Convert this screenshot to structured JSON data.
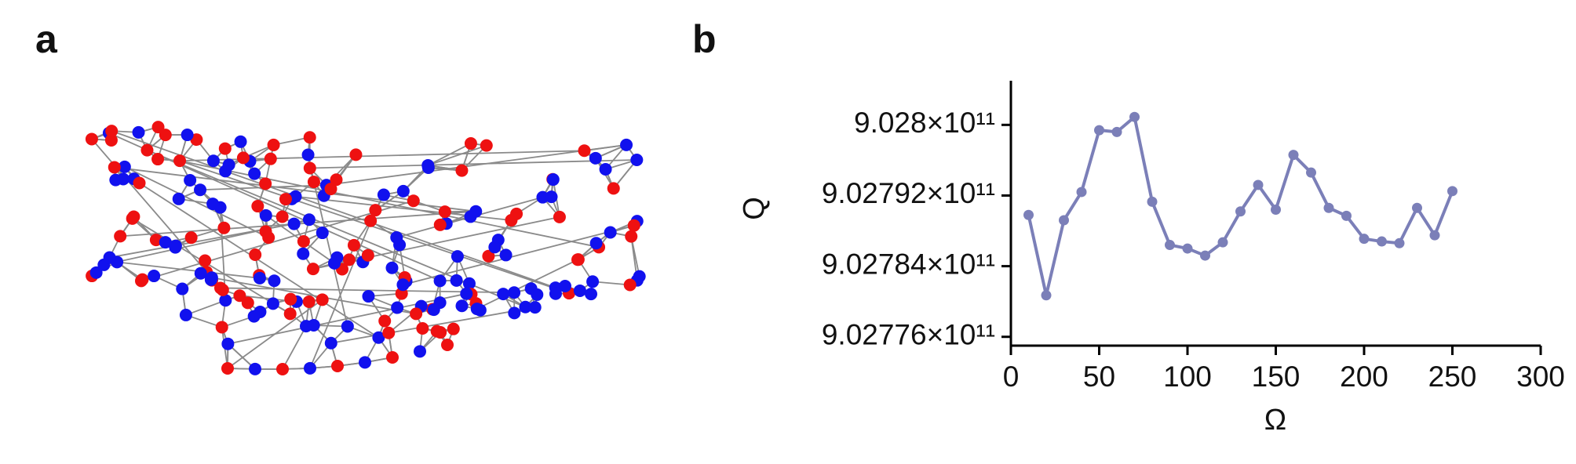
{
  "panels": {
    "a": "a",
    "b": "b"
  },
  "chart_data": {
    "type": "line",
    "x_label": "Ω",
    "y_label": "Q",
    "x": [
      10,
      20,
      30,
      40,
      50,
      60,
      70,
      80,
      90,
      100,
      110,
      120,
      130,
      140,
      150,
      160,
      170,
      180,
      190,
      200,
      210,
      220,
      230,
      240,
      250
    ],
    "series": [
      {
        "name": "Q",
        "color": "#7b7fb8",
        "values": [
          902789800000,
          902780700000,
          902789200000,
          902792400000,
          902799400000,
          902799200000,
          902800900000,
          902791300000,
          902786400000,
          902786000000,
          902785200000,
          902786700000,
          902790200000,
          902793200000,
          902790400000,
          902796600000,
          902794600000,
          902790600000,
          902789700000,
          902787100000,
          902786800000,
          902786600000,
          902790600000,
          902787500000,
          902792500000
        ]
      }
    ],
    "xlim": [
      0,
      300
    ],
    "xticks": [
      0,
      50,
      100,
      150,
      200,
      250,
      300
    ],
    "ylim": [
      902775000000,
      902805000000
    ],
    "yticks": [
      {
        "value": 902776000000,
        "label": "9.02776×10¹¹"
      },
      {
        "value": 902784000000,
        "label": "9.02784×10¹¹"
      },
      {
        "value": 902792000000,
        "label": "9.02792×10¹¹"
      },
      {
        "value": 902800000000,
        "label": "9.028×10¹¹"
      }
    ],
    "grid": false
  }
}
